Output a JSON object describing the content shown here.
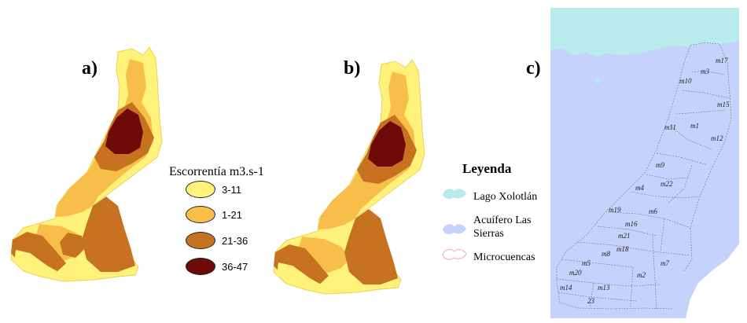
{
  "panels": {
    "a": "a)",
    "b": "b)",
    "c": "c)"
  },
  "runoff_legend": {
    "title": "Escorrentía m3.s-1",
    "classes": [
      {
        "label": "3-11",
        "color": "#FFF27A"
      },
      {
        "label": "1-21",
        "color": "#F7BE4A"
      },
      {
        "label": "21-36",
        "color": "#C77220"
      },
      {
        "label": "36-47",
        "color": "#6E0A08"
      }
    ]
  },
  "leyenda": {
    "title": "Leyenda",
    "items": [
      {
        "label": "Lago Xolotlán",
        "color": "#B8ECEC"
      },
      {
        "label": "Acuífero Las Sierras",
        "color": "#C5D2FB"
      },
      {
        "label": "Microcuencas",
        "color": "#F2A9A9"
      }
    ]
  },
  "microbasins": [
    "m17",
    "m3",
    "m10",
    "m15",
    "m11",
    "m1",
    "m12",
    "m9",
    "m4",
    "m22",
    "m19",
    "m6",
    "m16",
    "m21",
    "m18",
    "m8",
    "m5",
    "m7",
    "m20",
    "m2",
    "m14",
    "m13",
    "23"
  ]
}
